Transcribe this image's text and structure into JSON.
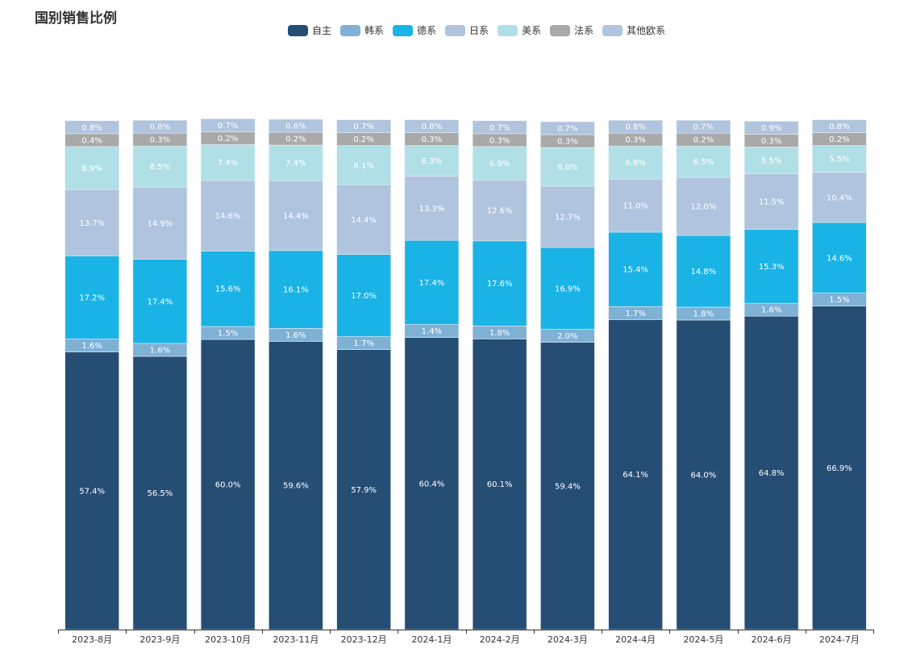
{
  "chart_data": {
    "type": "bar",
    "stacked": true,
    "title": "国别销售比例",
    "xlabel": "",
    "ylabel": "",
    "ylim": [
      0,
      100
    ],
    "legend_position": "top-center",
    "grid": false,
    "categories": [
      "2023-8月",
      "2023-9月",
      "2023-10月",
      "2023-11月",
      "2023-12月",
      "2024-1月",
      "2024-2月",
      "2024-3月",
      "2024-4月",
      "2024-5月",
      "2024-6月",
      "2024-7月"
    ],
    "series": [
      {
        "name": "自主",
        "color": "#264e75",
        "values": [
          57.4,
          56.5,
          60.0,
          59.6,
          57.9,
          60.4,
          60.1,
          59.4,
          64.1,
          64.0,
          64.8,
          66.9
        ]
      },
      {
        "name": "韩系",
        "color": "#7fb1d5",
        "values": [
          1.6,
          1.6,
          1.5,
          1.6,
          1.7,
          1.4,
          1.8,
          2.0,
          1.7,
          1.8,
          1.6,
          1.5
        ]
      },
      {
        "name": "德系",
        "color": "#1ab3e6",
        "values": [
          17.2,
          17.4,
          15.6,
          16.1,
          17.0,
          17.4,
          17.6,
          16.9,
          15.4,
          14.8,
          15.3,
          14.6
        ]
      },
      {
        "name": "日系",
        "color": "#b0c4de",
        "values": [
          13.7,
          14.9,
          14.6,
          14.4,
          14.4,
          13.3,
          12.6,
          12.7,
          11.0,
          12.0,
          11.5,
          10.4
        ]
      },
      {
        "name": "美系",
        "color": "#b0e0e6",
        "values": [
          8.9,
          8.5,
          7.4,
          7.4,
          8.1,
          6.3,
          6.9,
          8.0,
          6.8,
          6.5,
          5.5,
          5.5
        ]
      },
      {
        "name": "法系",
        "color": "#a9a9a9",
        "values": [
          0.4,
          0.3,
          0.2,
          0.2,
          0.2,
          0.3,
          0.3,
          0.3,
          0.3,
          0.2,
          0.3,
          0.2
        ]
      },
      {
        "name": "其他欧系",
        "color": "#b0c4de",
        "values": [
          0.8,
          0.8,
          0.7,
          0.6,
          0.7,
          0.8,
          0.7,
          0.7,
          0.8,
          0.7,
          0.9,
          0.8
        ]
      }
    ]
  }
}
